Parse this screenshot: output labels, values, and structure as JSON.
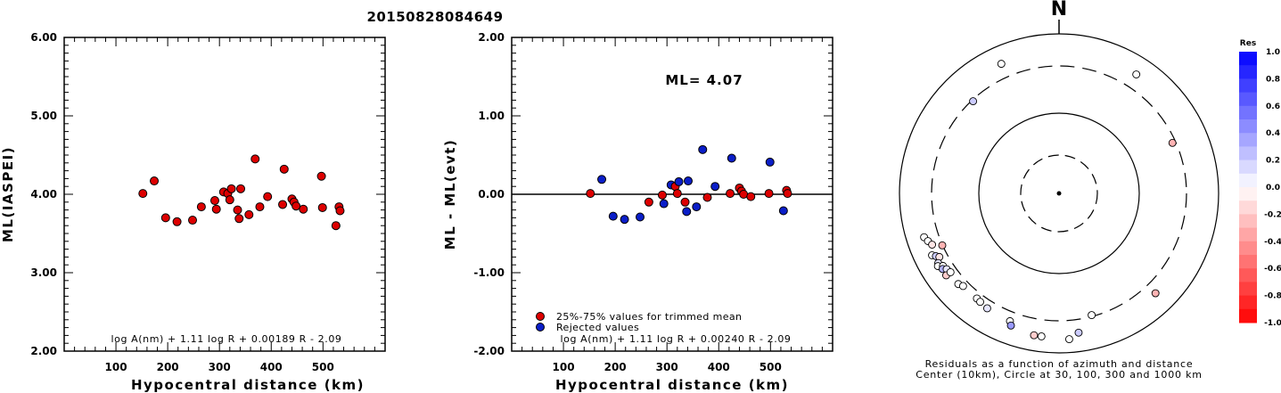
{
  "title": "20150828084649",
  "colors": {
    "trimmed": "#dd0000",
    "rejected": "#0a1ec8",
    "axis": "#000000"
  },
  "chart_data": [
    {
      "type": "scatter",
      "xlabel": "Hypocentral distance (km)",
      "ylabel": "ML(IASPEI)",
      "xlim": [
        0,
        620
      ],
      "ylim": [
        2.0,
        6.0
      ],
      "xticks": [
        100,
        200,
        300,
        400,
        500
      ],
      "yticks": [
        "2.00",
        "3.00",
        "4.00",
        "5.00",
        "6.00"
      ],
      "formula": "log A(nm) + 1.11 log R + 0.00189 R - 2.09",
      "points": [
        {
          "x": 152,
          "y": 4.01
        },
        {
          "x": 174,
          "y": 4.17
        },
        {
          "x": 196,
          "y": 3.7
        },
        {
          "x": 218,
          "y": 3.65
        },
        {
          "x": 248,
          "y": 3.67
        },
        {
          "x": 265,
          "y": 3.84
        },
        {
          "x": 291,
          "y": 3.92
        },
        {
          "x": 294,
          "y": 3.81
        },
        {
          "x": 308,
          "y": 4.03
        },
        {
          "x": 316,
          "y": 4.01
        },
        {
          "x": 320,
          "y": 3.93
        },
        {
          "x": 323,
          "y": 4.07
        },
        {
          "x": 335,
          "y": 3.8
        },
        {
          "x": 338,
          "y": 3.69
        },
        {
          "x": 341,
          "y": 4.07
        },
        {
          "x": 357,
          "y": 3.74
        },
        {
          "x": 369,
          "y": 4.45
        },
        {
          "x": 378,
          "y": 3.84
        },
        {
          "x": 393,
          "y": 3.97
        },
        {
          "x": 422,
          "y": 3.87
        },
        {
          "x": 425,
          "y": 4.32
        },
        {
          "x": 440,
          "y": 3.94
        },
        {
          "x": 444,
          "y": 3.9
        },
        {
          "x": 448,
          "y": 3.85
        },
        {
          "x": 462,
          "y": 3.81
        },
        {
          "x": 497,
          "y": 4.23
        },
        {
          "x": 499,
          "y": 3.83
        },
        {
          "x": 525,
          "y": 3.6
        },
        {
          "x": 531,
          "y": 3.84
        },
        {
          "x": 533,
          "y": 3.79
        }
      ]
    },
    {
      "type": "scatter",
      "xlabel": "Hypocentral distance (km)",
      "ylabel": "ML - ML(evt)",
      "xlim": [
        0,
        620
      ],
      "ylim": [
        -2.0,
        2.0
      ],
      "xticks": [
        100,
        200,
        300,
        400,
        500
      ],
      "yticks": [
        "-2.00",
        "-1.00",
        "0.00",
        "1.00",
        "2.00"
      ],
      "ml_label": "ML= 4.07",
      "formula": "log A(nm) + 1.11 log R + 0.00240 R - 2.09",
      "legend": [
        {
          "label": "25%-75% values for trimmed mean",
          "kind": "trimmed"
        },
        {
          "label": "Rejected values",
          "kind": "rejected"
        }
      ],
      "reference_line": 0.0,
      "points": [
        {
          "x": 152,
          "y": 0.01,
          "kind": "trimmed"
        },
        {
          "x": 174,
          "y": 0.19,
          "kind": "rejected"
        },
        {
          "x": 196,
          "y": -0.28,
          "kind": "rejected"
        },
        {
          "x": 218,
          "y": -0.32,
          "kind": "rejected"
        },
        {
          "x": 248,
          "y": -0.29,
          "kind": "rejected"
        },
        {
          "x": 265,
          "y": -0.1,
          "kind": "trimmed"
        },
        {
          "x": 291,
          "y": -0.01,
          "kind": "trimmed"
        },
        {
          "x": 294,
          "y": -0.12,
          "kind": "rejected"
        },
        {
          "x": 308,
          "y": 0.12,
          "kind": "rejected"
        },
        {
          "x": 316,
          "y": 0.1,
          "kind": "trimmed"
        },
        {
          "x": 320,
          "y": 0.01,
          "kind": "trimmed"
        },
        {
          "x": 323,
          "y": 0.16,
          "kind": "rejected"
        },
        {
          "x": 335,
          "y": -0.1,
          "kind": "trimmed"
        },
        {
          "x": 338,
          "y": -0.22,
          "kind": "rejected"
        },
        {
          "x": 341,
          "y": 0.17,
          "kind": "rejected"
        },
        {
          "x": 357,
          "y": -0.16,
          "kind": "rejected"
        },
        {
          "x": 369,
          "y": 0.57,
          "kind": "rejected"
        },
        {
          "x": 378,
          "y": -0.04,
          "kind": "trimmed"
        },
        {
          "x": 393,
          "y": 0.1,
          "kind": "rejected"
        },
        {
          "x": 422,
          "y": 0.01,
          "kind": "trimmed"
        },
        {
          "x": 425,
          "y": 0.46,
          "kind": "rejected"
        },
        {
          "x": 440,
          "y": 0.08,
          "kind": "trimmed"
        },
        {
          "x": 444,
          "y": 0.04,
          "kind": "trimmed"
        },
        {
          "x": 448,
          "y": 0.0,
          "kind": "trimmed"
        },
        {
          "x": 462,
          "y": -0.03,
          "kind": "trimmed"
        },
        {
          "x": 497,
          "y": 0.01,
          "kind": "trimmed"
        },
        {
          "x": 499,
          "y": 0.41,
          "kind": "rejected"
        },
        {
          "x": 525,
          "y": -0.21,
          "kind": "rejected"
        },
        {
          "x": 531,
          "y": 0.05,
          "kind": "trimmed"
        },
        {
          "x": 533,
          "y": 0.01,
          "kind": "trimmed"
        }
      ]
    },
    {
      "type": "scatter",
      "subtype": "polar",
      "north_label": "N",
      "caption_line1": "Residuals as a function of azimuth and distance",
      "caption_line2": "Center (10km), Circle at 30, 100, 300 and 1000 km",
      "colorbar_title": "Res",
      "colorbar_ticks": [
        "1.0",
        "0.8",
        "0.6",
        "0.4",
        "0.2",
        "0.0",
        "-0.2",
        "-0.4",
        "-0.6",
        "-0.8",
        "-1.0"
      ],
      "rings_km": [
        30,
        100,
        300,
        1000
      ],
      "points": [
        {
          "azimuth_deg": 336,
          "distance_km": 600,
          "res": 0.0
        },
        {
          "azimuth_deg": 33,
          "distance_km": 600,
          "res": 0.0
        },
        {
          "azimuth_deg": 317,
          "distance_km": 380,
          "res": 0.2
        },
        {
          "azimuth_deg": 66,
          "distance_km": 360,
          "res": -0.3
        },
        {
          "azimuth_deg": 252,
          "distance_km": 600,
          "res": 0.0
        },
        {
          "azimuth_deg": 250,
          "distance_km": 560,
          "res": 0.0
        },
        {
          "azimuth_deg": 248,
          "distance_km": 520,
          "res": -0.1
        },
        {
          "azimuth_deg": 244,
          "distance_km": 590,
          "res": 0.0
        },
        {
          "azimuth_deg": 243,
          "distance_km": 540,
          "res": 0.2
        },
        {
          "azimuth_deg": 242,
          "distance_km": 500,
          "res": -0.1
        },
        {
          "azimuth_deg": 240,
          "distance_km": 560,
          "res": 0.1
        },
        {
          "azimuth_deg": 239,
          "distance_km": 590,
          "res": 0.0
        },
        {
          "azimuth_deg": 238,
          "distance_km": 520,
          "res": 0.0
        },
        {
          "azimuth_deg": 237,
          "distance_km": 550,
          "res": 0.3
        },
        {
          "azimuth_deg": 236,
          "distance_km": 500,
          "res": 0.1
        },
        {
          "azimuth_deg": 234,
          "distance_km": 560,
          "res": -0.2
        },
        {
          "azimuth_deg": 246,
          "distance_km": 400,
          "res": -0.3
        },
        {
          "azimuth_deg": 234,
          "distance_km": 480,
          "res": 0.0
        },
        {
          "azimuth_deg": 228,
          "distance_km": 500,
          "res": 0.0
        },
        {
          "azimuth_deg": 226,
          "distance_km": 470,
          "res": 0.0
        },
        {
          "azimuth_deg": 218,
          "distance_km": 470,
          "res": 0.0
        },
        {
          "azimuth_deg": 216,
          "distance_km": 480,
          "res": 0.0
        },
        {
          "azimuth_deg": 212,
          "distance_km": 500,
          "res": 0.1
        },
        {
          "azimuth_deg": 201,
          "distance_km": 520,
          "res": 0.0
        },
        {
          "azimuth_deg": 200,
          "distance_km": 580,
          "res": 0.4
        },
        {
          "azimuth_deg": 190,
          "distance_km": 640,
          "res": -0.2
        },
        {
          "azimuth_deg": 187,
          "distance_km": 640,
          "res": 0.0
        },
        {
          "azimuth_deg": 176,
          "distance_km": 680,
          "res": 0.0
        },
        {
          "azimuth_deg": 172,
          "distance_km": 580,
          "res": 0.2
        },
        {
          "azimuth_deg": 165,
          "distance_km": 380,
          "res": 0.0
        },
        {
          "azimuth_deg": 136,
          "distance_km": 550,
          "res": -0.3
        }
      ]
    }
  ]
}
